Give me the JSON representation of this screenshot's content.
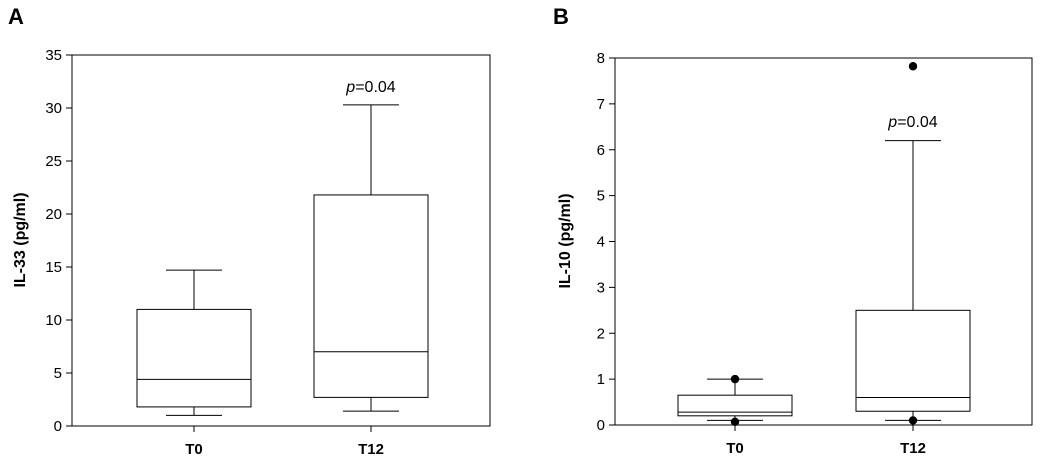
{
  "chart_data": [
    {
      "type": "box",
      "panel_label": "A",
      "ylabel": "IL-33 (pg/ml)",
      "ylim": [
        0,
        35
      ],
      "yticks": [
        0,
        5,
        10,
        15,
        20,
        25,
        30,
        35
      ],
      "categories": [
        "T0",
        "T12"
      ],
      "boxes": [
        {
          "category": "T0",
          "whisker_low": 1.0,
          "q1": 1.8,
          "median": 4.4,
          "q3": 11.0,
          "whisker_high": 14.7,
          "outliers": []
        },
        {
          "category": "T12",
          "whisker_low": 1.4,
          "q1": 2.7,
          "median": 7.0,
          "q3": 21.8,
          "whisker_high": 30.3,
          "outliers": []
        }
      ],
      "annotations": [
        {
          "category": "T12",
          "y": 31.5,
          "italic_text": "p",
          "text": "=0.04"
        }
      ],
      "grid": false
    },
    {
      "type": "box",
      "panel_label": "B",
      "ylabel": "IL-10 (pg/ml)",
      "ylim": [
        0,
        8
      ],
      "yticks": [
        0,
        1,
        2,
        3,
        4,
        5,
        6,
        7,
        8
      ],
      "categories": [
        "T0",
        "T12"
      ],
      "boxes": [
        {
          "category": "T0",
          "whisker_low": 0.1,
          "q1": 0.2,
          "median": 0.28,
          "q3": 0.65,
          "whisker_high": 1.0,
          "outliers": [
            1.0,
            0.07
          ]
        },
        {
          "category": "T12",
          "whisker_low": 0.1,
          "q1": 0.3,
          "median": 0.6,
          "q3": 2.5,
          "whisker_high": 6.2,
          "outliers": [
            7.82,
            0.1
          ]
        }
      ],
      "annotations": [
        {
          "category": "T12",
          "y": 6.5,
          "italic_text": "p",
          "text": "=0.04"
        }
      ],
      "grid": false
    }
  ]
}
